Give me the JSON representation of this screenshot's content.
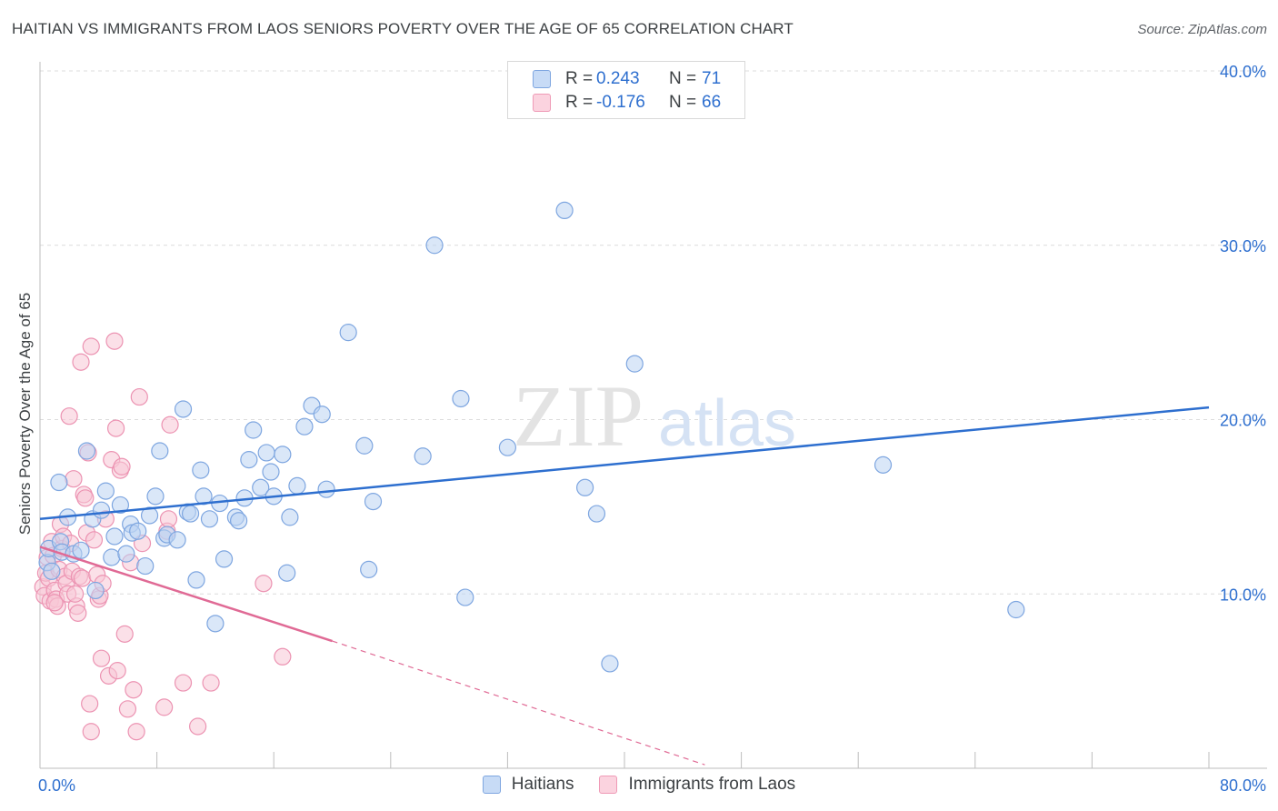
{
  "title": "HAITIAN VS IMMIGRANTS FROM LAOS SENIORS POVERTY OVER THE AGE OF 65 CORRELATION CHART",
  "source": "Source: ZipAtlas.com",
  "watermark": {
    "zip": "ZIP",
    "atlas": "atlas"
  },
  "legend_top": {
    "rows": [
      {
        "r_key": "R =",
        "r_val": "0.243",
        "n_key": "N =",
        "n_val": "71",
        "color": "#a8c6f0"
      },
      {
        "r_key": "R =",
        "r_val": "-0.176",
        "n_key": "N =",
        "n_val": "66",
        "color": "#f5b7c9"
      }
    ]
  },
  "legend_bottom": {
    "items": [
      "Haitians",
      "Immigrants from Laos"
    ]
  },
  "colors": {
    "blue_fill": "#a8c6f0",
    "blue_line": "#2e6fcf",
    "pink_fill": "#f5b7c9",
    "pink_line": "#e06a95",
    "grid": "#dcdcdc",
    "tick_text": "#2e6fcf"
  },
  "chart_data": {
    "type": "scatter",
    "title": "HAITIAN VS IMMIGRANTS FROM LAOS SENIORS POVERTY OVER THE AGE OF 65 CORRELATION CHART",
    "xlabel": "",
    "ylabel": "Seniors Poverty Over the Age of 65",
    "xlim": [
      0,
      80
    ],
    "ylim": [
      0,
      40
    ],
    "x_tick_labels": [
      "0.0%",
      "80.0%"
    ],
    "y_ticks": [
      10,
      20,
      30,
      40
    ],
    "y_tick_labels": [
      "10.0%",
      "20.0%",
      "30.0%",
      "40.0%"
    ],
    "grid": "horizontal dashed",
    "legend": "top-center",
    "series": [
      {
        "name": "Haitians",
        "color": "#a8c6f0",
        "trend": {
          "x": [
            0,
            80
          ],
          "y": [
            14.3,
            20.7
          ]
        },
        "points": [
          [
            0.5,
            11.8
          ],
          [
            0.6,
            12.6
          ],
          [
            0.8,
            11.3
          ],
          [
            1.3,
            16.4
          ],
          [
            1.4,
            13.0
          ],
          [
            1.5,
            12.4
          ],
          [
            1.9,
            14.4
          ],
          [
            2.3,
            12.3
          ],
          [
            2.8,
            12.5
          ],
          [
            3.2,
            18.2
          ],
          [
            3.6,
            14.3
          ],
          [
            3.8,
            10.2
          ],
          [
            4.2,
            14.8
          ],
          [
            4.5,
            15.9
          ],
          [
            4.9,
            12.1
          ],
          [
            5.1,
            13.3
          ],
          [
            5.5,
            15.1
          ],
          [
            5.9,
            12.3
          ],
          [
            6.2,
            14.0
          ],
          [
            6.3,
            13.5
          ],
          [
            6.7,
            13.6
          ],
          [
            7.2,
            11.6
          ],
          [
            7.5,
            14.5
          ],
          [
            7.9,
            15.6
          ],
          [
            8.2,
            18.2
          ],
          [
            8.5,
            13.2
          ],
          [
            8.7,
            13.4
          ],
          [
            9.4,
            13.1
          ],
          [
            9.8,
            20.6
          ],
          [
            10.1,
            14.7
          ],
          [
            10.3,
            14.6
          ],
          [
            10.7,
            10.8
          ],
          [
            11.0,
            17.1
          ],
          [
            11.2,
            15.6
          ],
          [
            11.6,
            14.3
          ],
          [
            12.0,
            8.3
          ],
          [
            12.3,
            15.2
          ],
          [
            12.6,
            12.0
          ],
          [
            13.4,
            14.4
          ],
          [
            13.6,
            14.2
          ],
          [
            14.0,
            15.5
          ],
          [
            14.3,
            17.7
          ],
          [
            14.6,
            19.4
          ],
          [
            15.1,
            16.1
          ],
          [
            15.5,
            18.1
          ],
          [
            15.8,
            17.0
          ],
          [
            16.0,
            15.6
          ],
          [
            16.6,
            18.0
          ],
          [
            16.9,
            11.2
          ],
          [
            17.1,
            14.4
          ],
          [
            17.6,
            16.2
          ],
          [
            18.1,
            19.6
          ],
          [
            18.6,
            20.8
          ],
          [
            19.3,
            20.3
          ],
          [
            19.6,
            16.0
          ],
          [
            21.1,
            25.0
          ],
          [
            22.2,
            18.5
          ],
          [
            22.5,
            11.4
          ],
          [
            22.8,
            15.3
          ],
          [
            26.2,
            17.9
          ],
          [
            27.0,
            30.0
          ],
          [
            28.8,
            21.2
          ],
          [
            29.1,
            9.8
          ],
          [
            32.0,
            18.4
          ],
          [
            35.9,
            32.0
          ],
          [
            37.3,
            16.1
          ],
          [
            38.1,
            14.6
          ],
          [
            39.0,
            6.0
          ],
          [
            40.7,
            23.2
          ],
          [
            57.7,
            17.4
          ],
          [
            66.8,
            9.1
          ]
        ]
      },
      {
        "name": "Immigrants from Laos",
        "color": "#f5b7c9",
        "trend": {
          "x": [
            0,
            20
          ],
          "y": [
            12.7,
            7.3
          ]
        },
        "trend_extended": {
          "x": [
            20,
            45.5
          ],
          "y": [
            7.3,
            0.2
          ]
        },
        "points": [
          [
            0.2,
            10.4
          ],
          [
            0.3,
            9.9
          ],
          [
            0.4,
            11.2
          ],
          [
            0.5,
            12.1
          ],
          [
            0.6,
            10.9
          ],
          [
            0.7,
            9.6
          ],
          [
            0.8,
            13.0
          ],
          [
            0.9,
            12.2
          ],
          [
            1.0,
            10.2
          ],
          [
            1.1,
            9.7
          ],
          [
            1.2,
            9.3
          ],
          [
            1.3,
            11.4
          ],
          [
            1.4,
            14.0
          ],
          [
            1.5,
            12.6
          ],
          [
            1.6,
            13.3
          ],
          [
            1.7,
            11.0
          ],
          [
            1.8,
            10.6
          ],
          [
            1.9,
            10.0
          ],
          [
            2.0,
            20.2
          ],
          [
            2.1,
            12.9
          ],
          [
            2.2,
            11.3
          ],
          [
            2.3,
            16.6
          ],
          [
            2.5,
            9.3
          ],
          [
            2.6,
            8.9
          ],
          [
            2.7,
            11.0
          ],
          [
            2.8,
            23.3
          ],
          [
            2.9,
            10.9
          ],
          [
            3.0,
            15.7
          ],
          [
            3.1,
            15.5
          ],
          [
            3.2,
            13.5
          ],
          [
            3.3,
            18.1
          ],
          [
            3.4,
            3.7
          ],
          [
            3.5,
            2.1
          ],
          [
            3.5,
            24.2
          ],
          [
            3.7,
            13.1
          ],
          [
            3.9,
            11.1
          ],
          [
            4.0,
            9.7
          ],
          [
            4.1,
            9.9
          ],
          [
            4.2,
            6.3
          ],
          [
            4.3,
            10.6
          ],
          [
            4.5,
            14.3
          ],
          [
            4.7,
            5.3
          ],
          [
            4.9,
            17.7
          ],
          [
            5.1,
            24.5
          ],
          [
            5.2,
            19.5
          ],
          [
            5.3,
            5.6
          ],
          [
            5.5,
            17.1
          ],
          [
            5.6,
            17.3
          ],
          [
            5.8,
            7.7
          ],
          [
            6.0,
            3.4
          ],
          [
            6.2,
            11.8
          ],
          [
            6.4,
            4.5
          ],
          [
            6.6,
            2.1
          ],
          [
            6.8,
            21.3
          ],
          [
            7.0,
            12.9
          ],
          [
            8.5,
            3.5
          ],
          [
            8.7,
            13.6
          ],
          [
            8.9,
            19.7
          ],
          [
            8.8,
            14.3
          ],
          [
            9.8,
            4.9
          ],
          [
            10.8,
            2.4
          ],
          [
            11.7,
            4.9
          ],
          [
            15.3,
            10.6
          ],
          [
            16.6,
            6.4
          ],
          [
            1.0,
            9.5
          ],
          [
            2.4,
            10.0
          ]
        ]
      }
    ]
  }
}
